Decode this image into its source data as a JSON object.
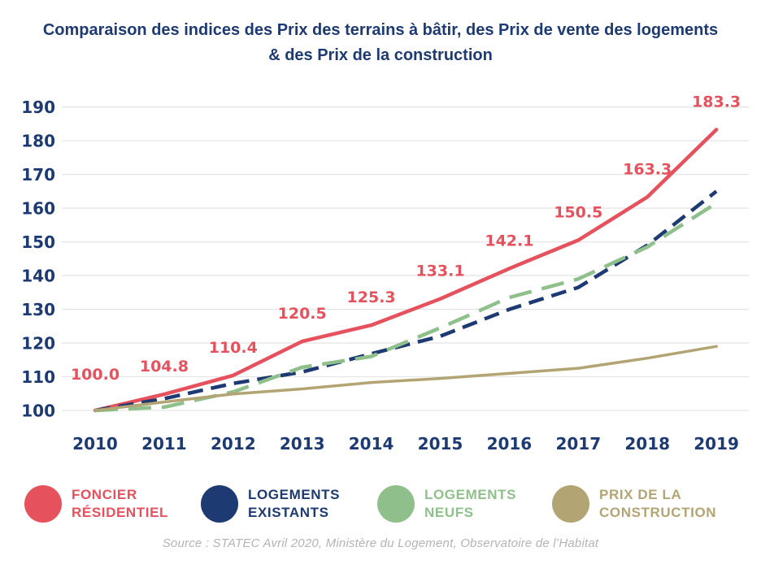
{
  "title": "Comparaison des indices des Prix des terrains à bâtir, des Prix de vente des logements\n& des Prix de la construction",
  "source": "Source : STATEC Avril 2020, Ministère du Logement, Observatoire de l’Habitat",
  "colors": {
    "title": "#1e3a72",
    "axis_labels": "#1e3a72",
    "grid": "#e5e5e5",
    "background": "#ffffff",
    "foncier": "#e5525e",
    "existants": "#1e3a72",
    "neufs": "#8fc08c",
    "construction": "#b3a474",
    "source_text": "#b4b4b4"
  },
  "chart_data": {
    "type": "line",
    "title": "Comparaison des indices des Prix des terrains à bâtir, des Prix de vente des logements & des Prix de la construction",
    "categories": [
      "2010",
      "2011",
      "2012",
      "2013",
      "2014",
      "2015",
      "2016",
      "2017",
      "2018",
      "2019"
    ],
    "xlabel": "",
    "ylabel": "",
    "ylim": [
      100,
      190
    ],
    "ytick_step": 10,
    "grid": "horizontal-only",
    "legend_position": "bottom",
    "series": [
      {
        "name": "FONCIER RÉSIDENTIEL",
        "key": "foncier",
        "color": "#e5525e",
        "line_style": "solid",
        "stroke_width": 4.5,
        "dash": "none",
        "values": [
          100.0,
          104.8,
          110.4,
          120.5,
          125.3,
          133.1,
          142.1,
          150.5,
          163.3,
          183.3
        ],
        "point_labels": [
          "100.0",
          "104.8",
          "110.4",
          "120.5",
          "125.3",
          "133.1",
          "142.1",
          "150.5",
          "163.3",
          "183.3"
        ]
      },
      {
        "name": "LOGEMENTS EXISTANTS",
        "key": "existants",
        "color": "#1e3a72",
        "line_style": "dashed",
        "stroke_width": 4.5,
        "dash": "19 10",
        "values": [
          100,
          103.5,
          108,
          111.4,
          116.8,
          122,
          130,
          136.5,
          149,
          165
        ],
        "point_labels": []
      },
      {
        "name": "LOGEMENTS NEUFS",
        "key": "neufs",
        "color": "#8fc08c",
        "line_style": "long-dashed",
        "stroke_width": 4.5,
        "dash": "28 13",
        "values": [
          100,
          101,
          105.5,
          112.8,
          116,
          124.5,
          133.5,
          139,
          148.5,
          161.5
        ],
        "point_labels": []
      },
      {
        "name": "PRIX DE LA CONSTRUCTION",
        "key": "construction",
        "color": "#b3a474",
        "line_style": "solid",
        "stroke_width": 3.5,
        "dash": "none",
        "values": [
          100,
          102.5,
          104.9,
          106.4,
          108.3,
          109.5,
          111,
          112.5,
          115.5,
          119
        ],
        "point_labels": []
      }
    ]
  },
  "y_axis": {
    "ticks": [
      "190",
      "180",
      "170",
      "160",
      "150",
      "140",
      "130",
      "120",
      "110",
      "100"
    ]
  },
  "x_axis": {
    "ticks": [
      "2010",
      "2011",
      "2012",
      "2013",
      "2014",
      "2015",
      "2016",
      "2017",
      "2018",
      "2019"
    ]
  },
  "legend": {
    "items": [
      {
        "line1": "FONCIER",
        "line2": "RÉSIDENTIEL",
        "color": "#e5525e"
      },
      {
        "line1": "LOGEMENTS",
        "line2": "EXISTANTS",
        "color": "#1e3a72"
      },
      {
        "line1": "LOGEMENTS",
        "line2": "NEUFS",
        "color": "#8fc08c"
      },
      {
        "line1": "PRIX DE LA",
        "line2": "CONSTRUCTION",
        "color": "#b3a474"
      }
    ]
  }
}
